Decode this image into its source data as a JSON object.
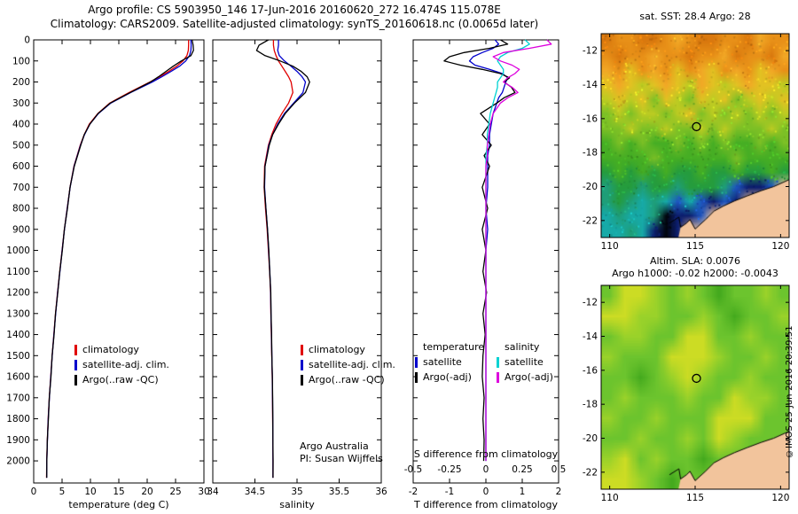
{
  "header": {
    "title_line1": "Argo profile: CS 5903950_146 17-Jun-2016 20160620_272 16.474S 115.078E",
    "title_line2": "Climatology: CARS2009. Satellite-adjusted climatology: synTS_20160618.nc (0.0065d later)"
  },
  "footer": {
    "copyright": "©IMOS 25-Jun-2016 20:39:51"
  },
  "colors": {
    "climatology": "#e00000",
    "satellite": "#0000cc",
    "argo": "#000000",
    "satellite_salinity": "#00d2d2",
    "argo_salinity": "#dd00dd",
    "axis": "#000000",
    "land": "#f2c49c"
  },
  "depth_axis": {
    "max": 2105,
    "ticks": [
      0,
      100,
      200,
      300,
      400,
      500,
      600,
      700,
      800,
      900,
      1000,
      1100,
      1200,
      1300,
      1400,
      1500,
      1600,
      1700,
      1800,
      1900,
      2000
    ]
  },
  "chart_data": [
    {
      "id": "temperature_profile",
      "type": "line",
      "xlabel": "temperature (deg C)",
      "xlim": [
        0,
        30
      ],
      "xticks": [
        0,
        5,
        10,
        15,
        20,
        25,
        30
      ],
      "depths": [
        0,
        25,
        50,
        75,
        100,
        125,
        150,
        175,
        200,
        250,
        300,
        350,
        400,
        450,
        500,
        600,
        700,
        800,
        900,
        1000,
        1100,
        1200,
        1300,
        1400,
        1500,
        1600,
        1700,
        1800,
        1900,
        2000,
        2080
      ],
      "series": [
        {
          "name": "climatology",
          "color_key": "climatology",
          "values": [
            27.3,
            27.3,
            27.25,
            27.0,
            26.3,
            25.2,
            23.8,
            22.2,
            20.5,
            16.8,
            13.4,
            11.3,
            9.8,
            8.9,
            8.2,
            7.1,
            6.4,
            5.9,
            5.4,
            5.0,
            4.6,
            4.2,
            3.85,
            3.55,
            3.25,
            3.0,
            2.75,
            2.55,
            2.4,
            2.3,
            2.27
          ]
        },
        {
          "name": "satellite-adj. clim.",
          "color_key": "satellite",
          "values": [
            27.7,
            27.75,
            27.7,
            27.45,
            26.8,
            25.7,
            24.2,
            22.6,
            20.9,
            17.1,
            13.6,
            11.4,
            9.9,
            8.95,
            8.25,
            7.12,
            6.42,
            5.92,
            5.42,
            5.02,
            4.62,
            4.22,
            3.87,
            3.57,
            3.27,
            3.02,
            2.77,
            2.57,
            2.42,
            2.31,
            2.28
          ]
        },
        {
          "name": "Argo(..raw -QC)",
          "color_key": "argo",
          "values": [
            27.9,
            28.1,
            28.15,
            27.7,
            26.0,
            24.6,
            23.3,
            22.0,
            20.6,
            17.0,
            13.5,
            11.35,
            9.9,
            8.9,
            8.3,
            7.15,
            6.4,
            5.95,
            5.4,
            5.05,
            4.6,
            4.25,
            3.85,
            3.6,
            3.25,
            3.05,
            2.75,
            2.6,
            2.4,
            2.32,
            2.29
          ]
        }
      ]
    },
    {
      "id": "salinity_profile",
      "type": "line",
      "xlabel": "salinity",
      "xlim": [
        34,
        36
      ],
      "xticks": [
        34,
        34.5,
        35,
        35.5,
        36
      ],
      "annotations": [
        "Argo Australia",
        "PI: Susan Wijffels"
      ],
      "depths": [
        0,
        25,
        50,
        75,
        100,
        125,
        150,
        175,
        200,
        250,
        300,
        350,
        400,
        450,
        500,
        600,
        700,
        800,
        900,
        1000,
        1100,
        1200,
        1300,
        1400,
        1500,
        1600,
        1700,
        1800,
        1900,
        2000,
        2080
      ],
      "series": [
        {
          "name": "climatology",
          "color_key": "climatology",
          "values": [
            34.72,
            34.72,
            34.73,
            34.75,
            34.78,
            34.82,
            34.86,
            34.9,
            34.93,
            34.95,
            34.9,
            34.82,
            34.75,
            34.7,
            34.66,
            34.615,
            34.61,
            34.625,
            34.645,
            34.66,
            34.675,
            34.685,
            34.69,
            34.695,
            34.7,
            34.705,
            34.708,
            34.71,
            34.713,
            34.715,
            34.715
          ]
        },
        {
          "name": "satellite-adj. clim.",
          "color_key": "satellite",
          "values": [
            34.78,
            34.78,
            34.77,
            34.79,
            34.85,
            34.93,
            35.0,
            35.06,
            35.1,
            35.07,
            34.96,
            34.85,
            34.77,
            34.71,
            34.665,
            34.62,
            34.615,
            34.63,
            34.65,
            34.663,
            34.677,
            34.687,
            34.691,
            34.697,
            34.701,
            34.706,
            34.709,
            34.712,
            34.714,
            34.715,
            34.715
          ]
        },
        {
          "name": "Argo(..raw -QC)",
          "color_key": "argo",
          "values": [
            34.66,
            34.55,
            34.52,
            34.62,
            34.8,
            34.95,
            35.05,
            35.12,
            35.15,
            35.1,
            34.97,
            34.86,
            34.78,
            34.71,
            34.67,
            34.62,
            34.612,
            34.63,
            34.65,
            34.665,
            34.676,
            34.688,
            34.692,
            34.698,
            34.701,
            34.707,
            34.71,
            34.713,
            34.714,
            34.716,
            34.715
          ]
        }
      ]
    },
    {
      "id": "difference_profile",
      "type": "line",
      "xlabel": "T difference from climatology",
      "xlim": [
        -2,
        2
      ],
      "xticks": [
        -2,
        -1,
        0,
        1,
        2
      ],
      "x2label": "S difference from climatology",
      "x2lim": [
        -0.5,
        0.5
      ],
      "x2ticks": [
        -0.5,
        -0.25,
        0,
        0.25,
        0.5
      ],
      "s_scale": 4,
      "legend_headers": [
        "temperature",
        "salinity"
      ],
      "depths": [
        0,
        20,
        40,
        60,
        80,
        100,
        120,
        140,
        160,
        180,
        200,
        225,
        250,
        275,
        300,
        350,
        400,
        450,
        500,
        550,
        600,
        700,
        800,
        900,
        1000,
        1100,
        1200,
        1300,
        1400,
        1500,
        1600,
        1700,
        1800,
        1900,
        2000
      ],
      "series": [
        {
          "name": "satellite",
          "group": "temperature",
          "axis": "T",
          "color_key": "satellite",
          "values": [
            0.25,
            0.35,
            0.2,
            -0.1,
            -0.35,
            -0.45,
            -0.3,
            0.1,
            0.45,
            0.6,
            0.55,
            0.5,
            0.45,
            0.35,
            0.3,
            0.2,
            0.15,
            0.1,
            0.1,
            0.05,
            0.05,
            0.05,
            0.0,
            0.05,
            0.0,
            0.0,
            0.0,
            0.0,
            0.0,
            0.0,
            0.0,
            0.0,
            0.0,
            0.0,
            0.0
          ]
        },
        {
          "name": "Argo(-adj)",
          "group": "temperature",
          "axis": "T",
          "color_key": "argo",
          "values": [
            0.4,
            0.6,
            0.1,
            -0.6,
            -1.0,
            -1.15,
            -0.7,
            -0.1,
            0.4,
            0.65,
            0.5,
            0.7,
            0.8,
            0.5,
            0.3,
            -0.15,
            0.1,
            -0.1,
            0.15,
            -0.05,
            0.1,
            -0.1,
            0.05,
            -0.1,
            0.0,
            -0.08,
            0.02,
            -0.08,
            -0.02,
            -0.08,
            -0.1,
            -0.05,
            -0.08,
            -0.05,
            -0.06
          ]
        },
        {
          "name": "satellite",
          "group": "salinity",
          "axis": "S",
          "color_key": "satellite_salinity",
          "values": [
            0.27,
            0.3,
            0.25,
            0.15,
            0.1,
            0.08,
            0.1,
            0.12,
            0.12,
            0.1,
            0.08,
            0.08,
            0.07,
            0.06,
            0.05,
            0.03,
            0.02,
            0.01,
            0.01,
            0.0,
            0.0,
            0.0,
            0.0,
            0.0,
            0.0,
            0.0,
            0.0,
            0.0,
            0.0,
            0.0,
            0.0,
            0.0,
            0.0,
            0.0,
            0.0
          ]
        },
        {
          "name": "Argo(-adj)",
          "group": "salinity",
          "axis": "S",
          "color_key": "argo_salinity",
          "values": [
            0.42,
            0.45,
            0.3,
            0.12,
            0.05,
            0.1,
            0.18,
            0.23,
            0.2,
            0.15,
            0.12,
            0.18,
            0.22,
            0.15,
            0.1,
            0.05,
            0.03,
            0.02,
            0.01,
            0.01,
            0.0,
            0.0,
            0.0,
            0.0,
            0.0,
            0.0,
            0.0,
            0.0,
            0.0,
            0.0,
            0.0,
            0.0,
            0.0,
            0.0,
            0.0
          ]
        }
      ]
    },
    {
      "id": "sst_map",
      "type": "heatmap",
      "title": "sat. SST: 28.4  Argo: 28",
      "sat_sst": 28.4,
      "argo_sst": 28,
      "lon_range": [
        109.5,
        120.5
      ],
      "lat_range": [
        -23,
        -11
      ],
      "lon_ticks": [
        110,
        115,
        120
      ],
      "lat_ticks": [
        -12,
        -14,
        -16,
        -18,
        -20,
        -22
      ],
      "marker": {
        "lon": 115.078,
        "lat": -16.474
      },
      "speckle": true,
      "palette": {
        "a": "#d9780e",
        "b": "#e89018",
        "c": "#f2a826",
        "d": "#e2c222",
        "e": "#bccc22",
        "f": "#7cc026",
        "g": "#46ae24",
        "h": "#259c3e",
        "t": "#1f9e78",
        "u": "#17aaa8",
        "n": "#1e55c0",
        "v": "#0d1f6e",
        "k": "#02060f",
        "L": "#f2c49c"
      },
      "grid": [
        "a b b a a b c b a a b b a c b b",
        "b a b b c b b a b b c a b b a c",
        "c b d b c b d b c d b c b d c b",
        "d c d e d c d e c d e d c d d e",
        "e d e d f d e f d e d f e d e d",
        "f e f e e f e d f e f e f e f e",
        "f f e f f e f f e f e f f f e f",
        "g f g f g g f g f g f g g f g f",
        "g g g g f g g g g g g f g g g g",
        "h g h g h g h h g h h g h h g h",
        "t h h t h h t h h h t n v v n L",
        "t h t u t u n u n v n v L L L L",
        "u t u u t k v v n L L L L L L L",
        "u u t u v k v L L L L L L L L L"
      ]
    },
    {
      "id": "sla_map",
      "type": "heatmap",
      "title_line1": "Altim. SLA: 0.0076",
      "title_line2": "Argo h1000: -0.02 h2000: -0.0043",
      "altim_sla": 0.0076,
      "argo_h1000": -0.02,
      "argo_h2000": -0.0043,
      "lon_range": [
        109.5,
        120.5
      ],
      "lat_range": [
        -23,
        -11
      ],
      "lon_ticks": [
        110,
        115,
        120
      ],
      "lat_ticks": [
        -12,
        -14,
        -16,
        -18,
        -20,
        -22
      ],
      "marker": {
        "lon": 115.078,
        "lat": -16.474
      },
      "speckle": false,
      "palette": {
        "M": "#6cc42e",
        "B": "#9ad22a",
        "Y": "#ccdc24",
        "D": "#44aa1e",
        "L": "#f2c49c"
      },
      "grid": [
        "M Y Y B M B M D M M B M",
        "Y Y B B M M B M D M M B",
        "M B B M M Y Y M M B M M",
        "B M M M Y Y Y B M M B M",
        "M M D M B Y B M M B M M",
        "M B M M M B M M Y B B M",
        "B M M B M M M Y Y Y M M",
        "M M B M M B M Y B M M M",
        "B Y M B M M D M M M M M",
        "Y Y B M D M M M M M M M"
      ]
    }
  ],
  "maps": {
    "land_polygon": [
      [
        114.15,
        -22.4
      ],
      [
        114.5,
        -22.15
      ],
      [
        114.7,
        -21.95
      ],
      [
        115.0,
        -22.5
      ],
      [
        115.6,
        -21.95
      ],
      [
        116.1,
        -21.45
      ],
      [
        116.65,
        -21.15
      ],
      [
        117.3,
        -20.85
      ],
      [
        118.05,
        -20.55
      ],
      [
        118.85,
        -20.25
      ],
      [
        119.6,
        -20.0
      ],
      [
        120.6,
        -19.55
      ],
      [
        120.6,
        -23.1
      ],
      [
        114.0,
        -23.1
      ]
    ],
    "coastline": [
      [
        113.5,
        -22.15
      ],
      [
        114.05,
        -21.8
      ],
      [
        114.15,
        -22.4
      ],
      [
        114.5,
        -22.15
      ],
      [
        114.7,
        -21.95
      ],
      [
        115.0,
        -22.5
      ],
      [
        115.6,
        -21.95
      ],
      [
        116.1,
        -21.45
      ],
      [
        116.65,
        -21.15
      ],
      [
        117.3,
        -20.85
      ],
      [
        118.05,
        -20.55
      ],
      [
        118.85,
        -20.25
      ],
      [
        119.6,
        -20.0
      ],
      [
        120.6,
        -19.55
      ]
    ]
  }
}
